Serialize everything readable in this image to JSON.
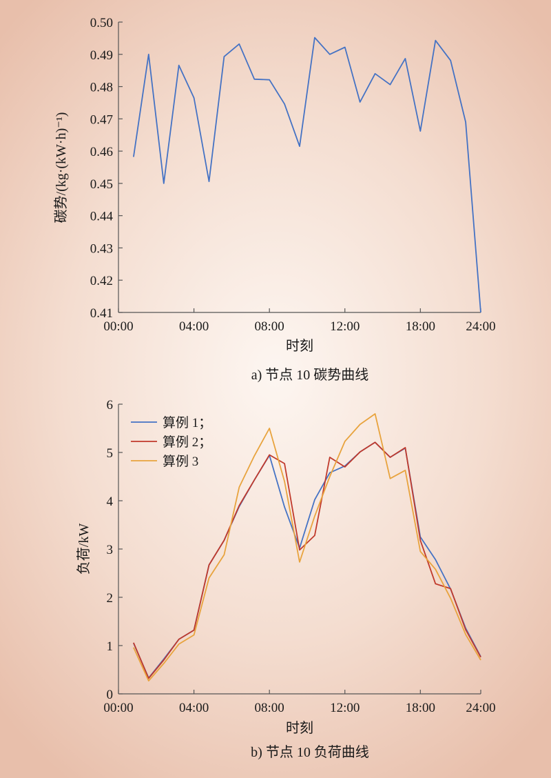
{
  "chart_data": [
    {
      "type": "line",
      "caption": "a) 节点 10 碳势曲线",
      "xlabel": "时刻",
      "ylabel": "碳势/(kg·(kW·h)⁻¹)",
      "xlim": [
        0,
        24
      ],
      "ylim": [
        0.41,
        0.5
      ],
      "x_ticks": [
        0,
        5,
        10,
        15,
        20,
        24
      ],
      "x_tick_labels": [
        "00:00",
        "04:00",
        "08:00",
        "12:00",
        "18:00",
        "24:00"
      ],
      "y_ticks": [
        0.41,
        0.42,
        0.43,
        0.44,
        0.45,
        0.46,
        0.47,
        0.48,
        0.49,
        0.5
      ],
      "y_tick_labels": [
        "0.41",
        "0.42",
        "0.43",
        "0.44",
        "0.45",
        "0.46",
        "0.47",
        "0.48",
        "0.49",
        "0.50"
      ],
      "grid": false,
      "series": [
        {
          "color": "#4472c4",
          "x": [
            1,
            2,
            3,
            4,
            5,
            6,
            7,
            8,
            9,
            10,
            11,
            12,
            13,
            14,
            15,
            16,
            17,
            18,
            19,
            20,
            21,
            22,
            23,
            24
          ],
          "values": [
            0.4582,
            0.49,
            0.45,
            0.4866,
            0.4765,
            0.4506,
            0.4893,
            0.4932,
            0.4823,
            0.4821,
            0.4746,
            0.4615,
            0.4952,
            0.49,
            0.4922,
            0.4752,
            0.484,
            0.4806,
            0.4887,
            0.4662,
            0.4943,
            0.4881,
            0.469,
            0.41
          ]
        }
      ]
    },
    {
      "type": "line",
      "caption": "b) 节点 10 负荷曲线",
      "xlabel": "时刻",
      "ylabel": "负荷/kW",
      "xlim": [
        0,
        24
      ],
      "ylim": [
        0,
        6
      ],
      "x_ticks": [
        0,
        5,
        10,
        15,
        20,
        24
      ],
      "x_tick_labels": [
        "00:00",
        "04:00",
        "08:00",
        "12:00",
        "18:00",
        "24:00"
      ],
      "y_ticks": [
        0,
        1,
        2,
        3,
        4,
        5,
        6
      ],
      "y_tick_labels": [
        "0",
        "1",
        "2",
        "3",
        "4",
        "5",
        "6"
      ],
      "grid": false,
      "legend": "top-left",
      "series": [
        {
          "name": "算例 1；",
          "color": "#4472c4",
          "x": [
            1,
            2,
            3,
            4,
            5,
            6,
            7,
            8,
            9,
            10,
            11,
            12,
            13,
            14,
            15,
            16,
            17,
            18,
            19,
            20,
            21,
            22,
            23,
            24
          ],
          "values": [
            1.05,
            0.33,
            0.72,
            1.13,
            1.32,
            2.67,
            3.18,
            3.88,
            4.43,
            4.94,
            3.87,
            3.02,
            4.02,
            4.58,
            4.72,
            5.01,
            5.21,
            4.9,
            5.09,
            3.25,
            2.78,
            2.17,
            1.36,
            0.77
          ]
        },
        {
          "name": "算例 2；",
          "color": "#c0392b",
          "x": [
            1,
            2,
            3,
            4,
            5,
            6,
            7,
            8,
            9,
            10,
            11,
            12,
            13,
            14,
            15,
            16,
            17,
            18,
            19,
            20,
            21,
            22,
            23,
            24
          ],
          "values": [
            1.06,
            0.32,
            0.7,
            1.13,
            1.32,
            2.67,
            3.18,
            3.9,
            4.43,
            4.95,
            4.77,
            2.98,
            3.28,
            4.9,
            4.7,
            5.01,
            5.21,
            4.9,
            5.1,
            3.18,
            2.28,
            2.18,
            1.33,
            0.76
          ]
        },
        {
          "name": "算例 3",
          "color": "#e8a33d",
          "x": [
            1,
            2,
            3,
            4,
            5,
            6,
            7,
            8,
            9,
            10,
            11,
            12,
            13,
            14,
            15,
            16,
            17,
            18,
            19,
            20,
            21,
            22,
            23,
            24
          ],
          "values": [
            0.96,
            0.27,
            0.63,
            1.03,
            1.22,
            2.4,
            2.88,
            4.28,
            4.93,
            5.5,
            4.4,
            2.73,
            3.68,
            4.5,
            5.23,
            5.58,
            5.8,
            4.46,
            4.63,
            2.95,
            2.58,
            1.98,
            1.23,
            0.7
          ]
        }
      ]
    }
  ]
}
